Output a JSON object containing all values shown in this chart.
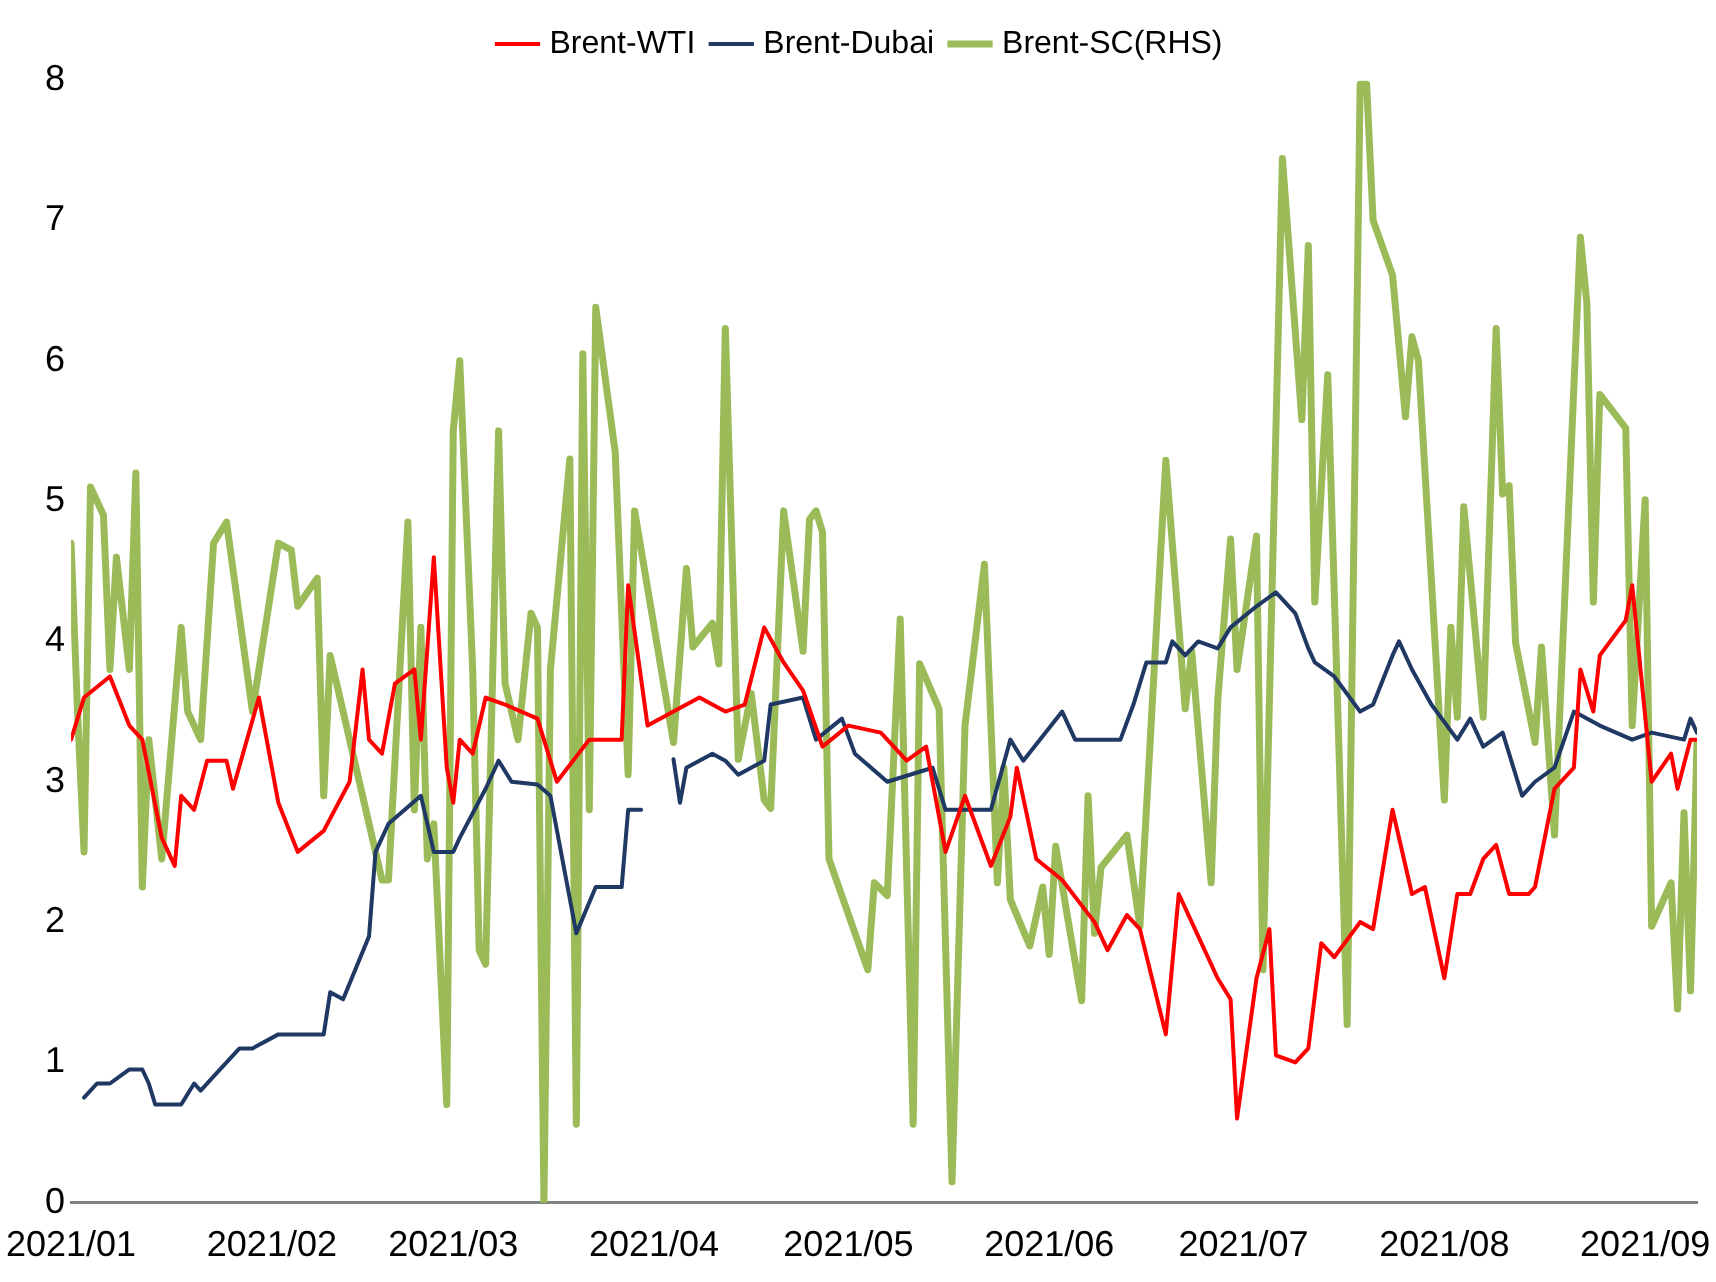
{
  "chart_data": {
    "type": "line",
    "legend": "top",
    "grid": false,
    "marker": "none",
    "line_style": "solid",
    "xlim": [
      "2021-01-01",
      "2021-09-09"
    ],
    "xticks": [
      {
        "value": "2021-01-01",
        "label": "2021/01"
      },
      {
        "value": "2021-02-01",
        "label": "2021/02"
      },
      {
        "value": "2021-03-01",
        "label": "2021/03"
      },
      {
        "value": "2021-04-01",
        "label": "2021/04"
      },
      {
        "value": "2021-05-01",
        "label": "2021/05"
      },
      {
        "value": "2021-06-01",
        "label": "2021/06"
      },
      {
        "value": "2021-07-01",
        "label": "2021/07"
      },
      {
        "value": "2021-08-01",
        "label": "2021/08"
      },
      {
        "value": "2021-09-01",
        "label": "2021/09"
      }
    ],
    "ylim": [
      0,
      8
    ],
    "yticks": [
      0,
      1,
      2,
      3,
      4,
      5,
      6,
      7,
      8
    ],
    "series": [
      {
        "name": "Brent-WTI",
        "color": "#ff0000",
        "x": [
          "2021-01-01",
          "2021-01-03",
          "2021-01-07",
          "2021-01-10",
          "2021-01-12",
          "2021-01-15",
          "2021-01-17",
          "2021-01-18",
          "2021-01-20",
          "2021-01-22",
          "2021-01-25",
          "2021-01-26",
          "2021-01-30",
          "2021-02-02",
          "2021-02-05",
          "2021-02-09",
          "2021-02-13",
          "2021-02-15",
          "2021-02-16",
          "2021-02-18",
          "2021-02-20",
          "2021-02-23",
          "2021-02-24",
          "2021-02-26",
          "2021-02-28",
          "2021-03-01",
          "2021-03-02",
          "2021-03-04",
          "2021-03-06",
          "2021-03-09",
          "2021-03-14",
          "2021-03-17",
          "2021-03-22",
          "2021-03-27",
          "2021-03-28",
          "2021-03-31",
          "2021-04-04",
          "2021-04-08",
          "2021-04-12",
          "2021-04-15",
          "2021-04-18",
          "2021-04-21",
          "2021-04-24",
          "2021-04-27",
          "2021-05-01",
          "2021-05-06",
          "2021-05-10",
          "2021-05-13",
          "2021-05-16",
          "2021-05-19",
          "2021-05-23",
          "2021-05-26",
          "2021-05-27",
          "2021-05-30",
          "2021-06-03",
          "2021-06-08",
          "2021-06-10",
          "2021-06-13",
          "2021-06-15",
          "2021-06-19",
          "2021-06-21",
          "2021-06-24",
          "2021-06-27",
          "2021-06-29",
          "2021-06-30",
          "2021-07-03",
          "2021-07-05",
          "2021-07-06",
          "2021-07-09",
          "2021-07-11",
          "2021-07-13",
          "2021-07-15",
          "2021-07-19",
          "2021-07-21",
          "2021-07-24",
          "2021-07-27",
          "2021-07-29",
          "2021-08-01",
          "2021-08-03",
          "2021-08-05",
          "2021-08-07",
          "2021-08-09",
          "2021-08-11",
          "2021-08-14",
          "2021-08-15",
          "2021-08-18",
          "2021-08-21",
          "2021-08-22",
          "2021-08-24",
          "2021-08-25",
          "2021-08-29",
          "2021-08-30",
          "2021-09-02",
          "2021-09-05",
          "2021-09-06",
          "2021-09-08",
          "2021-09-09"
        ],
        "values": [
          3.3,
          3.6,
          3.75,
          3.4,
          3.3,
          2.6,
          2.4,
          2.9,
          2.8,
          3.15,
          3.15,
          2.95,
          3.6,
          2.85,
          2.5,
          2.65,
          3.0,
          3.8,
          3.3,
          3.2,
          3.7,
          3.8,
          3.3,
          4.6,
          3.1,
          2.85,
          3.3,
          3.2,
          3.6,
          3.55,
          3.45,
          3.0,
          3.3,
          3.3,
          4.4,
          3.4,
          3.5,
          3.6,
          3.5,
          3.55,
          4.1,
          3.85,
          3.65,
          3.25,
          3.4,
          3.35,
          3.15,
          3.25,
          2.5,
          2.9,
          2.4,
          2.75,
          3.1,
          2.45,
          2.3,
          2.0,
          1.8,
          2.05,
          1.95,
          1.2,
          2.2,
          1.9,
          1.6,
          1.45,
          0.6,
          1.6,
          1.95,
          1.05,
          1.0,
          1.1,
          1.85,
          1.75,
          2.0,
          1.95,
          2.8,
          2.2,
          2.25,
          1.6,
          2.2,
          2.2,
          2.45,
          2.55,
          2.2,
          2.2,
          2.25,
          2.95,
          3.1,
          3.8,
          3.5,
          3.9,
          4.15,
          4.4,
          3.0,
          3.2,
          2.95,
          3.3,
          3.3
        ]
      },
      {
        "name": "Brent-Dubai",
        "color": "#1f3864",
        "x": [
          "2021-01-03",
          "2021-01-05",
          "2021-01-07",
          "2021-01-10",
          "2021-01-12",
          "2021-01-13",
          "2021-01-14",
          "2021-01-18",
          "2021-01-20",
          "2021-01-21",
          "2021-01-24",
          "2021-01-27",
          "2021-01-29",
          "2021-02-02",
          "2021-02-05",
          "2021-02-09",
          "2021-02-10",
          "2021-02-12",
          "2021-02-16",
          "2021-02-17",
          "2021-02-19",
          "2021-02-24",
          "2021-02-26",
          "2021-03-01",
          "2021-03-02",
          "2021-03-06",
          "2021-03-08",
          "2021-03-10",
          "2021-03-14",
          "2021-03-16",
          "2021-03-20",
          "2021-03-23",
          "2021-03-27",
          "2021-03-28",
          "2021-03-30",
          "2021-04-02",
          "2021-04-04",
          "2021-04-05",
          "2021-04-06",
          "2021-04-10",
          "2021-04-12",
          "2021-04-14",
          "2021-04-18",
          "2021-04-19",
          "2021-04-24",
          "2021-04-26",
          "2021-04-30",
          "2021-05-02",
          "2021-05-07",
          "2021-05-14",
          "2021-05-16",
          "2021-05-23",
          "2021-05-26",
          "2021-05-28",
          "2021-06-03",
          "2021-06-05",
          "2021-06-08",
          "2021-06-12",
          "2021-06-14",
          "2021-06-16",
          "2021-06-19",
          "2021-06-20",
          "2021-06-22",
          "2021-06-24",
          "2021-06-27",
          "2021-06-29",
          "2021-07-03",
          "2021-07-06",
          "2021-07-09",
          "2021-07-11",
          "2021-07-12",
          "2021-07-15",
          "2021-07-19",
          "2021-07-21",
          "2021-07-24",
          "2021-07-25",
          "2021-07-27",
          "2021-07-30",
          "2021-08-03",
          "2021-08-05",
          "2021-08-07",
          "2021-08-10",
          "2021-08-13",
          "2021-08-15",
          "2021-08-18",
          "2021-08-21",
          "2021-08-25",
          "2021-08-30",
          "2021-09-02",
          "2021-09-07",
          "2021-09-08",
          "2021-09-09"
        ],
        "values": [
          0.75,
          0.85,
          0.85,
          0.95,
          0.95,
          0.85,
          0.7,
          0.7,
          0.85,
          0.8,
          0.95,
          1.1,
          1.1,
          1.2,
          1.2,
          1.2,
          1.5,
          1.45,
          1.9,
          2.5,
          2.7,
          2.9,
          2.5,
          2.5,
          2.6,
          2.95,
          3.15,
          3.0,
          2.98,
          2.9,
          1.92,
          2.25,
          2.25,
          2.8,
          2.8,
          null,
          3.16,
          2.85,
          3.1,
          3.2,
          3.15,
          3.05,
          3.15,
          3.55,
          3.6,
          3.3,
          3.45,
          3.2,
          3.0,
          3.1,
          2.8,
          2.8,
          3.3,
          3.15,
          3.5,
          3.3,
          3.3,
          3.3,
          3.55,
          3.85,
          3.85,
          4.0,
          3.9,
          4.0,
          3.95,
          4.1,
          4.25,
          4.35,
          4.2,
          3.95,
          3.85,
          3.75,
          3.5,
          3.55,
          3.9,
          4.0,
          3.8,
          3.55,
          3.3,
          3.45,
          3.25,
          3.35,
          2.9,
          3.0,
          3.1,
          3.5,
          3.4,
          3.3,
          3.35,
          3.3,
          3.45,
          3.35
        ]
      },
      {
        "name": "Brent-SC(RHS)",
        "color": "#9bbb59",
        "x": [
          "2021-01-01",
          "2021-01-02",
          "2021-01-03",
          "2021-01-04",
          "2021-01-06",
          "2021-01-07",
          "2021-01-08",
          "2021-01-10",
          "2021-01-11",
          "2021-01-12",
          "2021-01-13",
          "2021-01-15",
          "2021-01-18",
          "2021-01-19",
          "2021-01-21",
          "2021-01-23",
          "2021-01-25",
          "2021-01-29",
          "2021-02-02",
          "2021-02-04",
          "2021-02-05",
          "2021-02-08",
          "2021-02-09",
          "2021-02-10",
          "2021-02-18",
          "2021-02-19",
          "2021-02-22",
          "2021-02-23",
          "2021-02-24",
          "2021-02-25",
          "2021-02-26",
          "2021-02-28",
          "2021-03-01",
          "2021-03-02",
          "2021-03-04",
          "2021-03-05",
          "2021-03-06",
          "2021-03-08",
          "2021-03-09",
          "2021-03-11",
          "2021-03-13",
          "2021-03-14",
          "2021-03-15",
          "2021-03-16",
          "2021-03-19",
          "2021-03-20",
          "2021-03-21",
          "2021-03-22",
          "2021-03-23",
          "2021-03-26",
          "2021-03-28",
          "2021-03-29",
          "2021-04-04",
          "2021-04-06",
          "2021-04-07",
          "2021-04-10",
          "2021-04-11",
          "2021-04-12",
          "2021-04-14",
          "2021-04-16",
          "2021-04-18",
          "2021-04-19",
          "2021-04-21",
          "2021-04-24",
          "2021-04-25",
          "2021-04-26",
          "2021-04-27",
          "2021-04-28",
          "2021-05-04",
          "2021-05-05",
          "2021-05-07",
          "2021-05-09",
          "2021-05-11",
          "2021-05-12",
          "2021-05-15",
          "2021-05-17",
          "2021-05-19",
          "2021-05-22",
          "2021-05-24",
          "2021-05-25",
          "2021-05-26",
          "2021-05-29",
          "2021-05-31",
          "2021-06-01",
          "2021-06-02",
          "2021-06-06",
          "2021-06-07",
          "2021-06-08",
          "2021-06-09",
          "2021-06-13",
          "2021-06-15",
          "2021-06-19",
          "2021-06-22",
          "2021-06-23",
          "2021-06-26",
          "2021-06-27",
          "2021-06-29",
          "2021-06-30",
          "2021-07-03",
          "2021-07-04",
          "2021-07-07",
          "2021-07-10",
          "2021-07-11",
          "2021-07-12",
          "2021-07-14",
          "2021-07-17",
          "2021-07-19",
          "2021-07-20",
          "2021-07-21",
          "2021-07-24",
          "2021-07-26",
          "2021-07-27",
          "2021-07-28",
          "2021-08-01",
          "2021-08-02",
          "2021-08-03",
          "2021-08-04",
          "2021-08-07",
          "2021-08-09",
          "2021-08-10",
          "2021-08-11",
          "2021-08-12",
          "2021-08-15",
          "2021-08-16",
          "2021-08-18",
          "2021-08-22",
          "2021-08-23",
          "2021-08-24",
          "2021-08-25",
          "2021-08-29",
          "2021-08-30",
          "2021-09-01",
          "2021-09-02",
          "2021-09-05",
          "2021-09-06",
          "2021-09-07",
          "2021-09-08",
          "2021-09-09"
        ],
        "values": [
          4.7,
          3.5,
          2.5,
          5.1,
          4.9,
          3.8,
          4.6,
          3.8,
          5.2,
          2.25,
          3.3,
          2.45,
          4.1,
          3.5,
          3.3,
          4.7,
          4.85,
          3.5,
          4.7,
          4.65,
          4.25,
          4.45,
          2.9,
          3.9,
          2.3,
          2.3,
          4.85,
          2.8,
          4.1,
          2.45,
          2.7,
          0.7,
          5.5,
          6.0,
          3.8,
          1.8,
          1.7,
          5.5,
          3.7,
          3.3,
          4.2,
          4.1,
          0.0,
          3.8,
          5.3,
          0.56,
          6.05,
          2.8,
          6.38,
          5.35,
          3.05,
          4.93,
          3.28,
          4.52,
          3.96,
          4.13,
          3.84,
          6.23,
          3.16,
          3.63,
          2.87,
          2.81,
          4.93,
          3.93,
          4.87,
          4.93,
          4.78,
          2.45,
          1.66,
          2.28,
          2.19,
          4.16,
          0.56,
          3.84,
          3.52,
          0.15,
          3.4,
          4.55,
          2.28,
          3.1,
          2.16,
          1.83,
          2.25,
          1.77,
          2.54,
          1.44,
          2.9,
          1.92,
          2.39,
          2.62,
          1.97,
          5.29,
          3.52,
          3.93,
          2.28,
          3.57,
          4.73,
          3.8,
          4.75,
          1.66,
          7.44,
          5.58,
          6.82,
          4.28,
          5.9,
          1.27,
          7.97,
          7.97,
          7.0,
          6.61,
          5.6,
          6.17,
          6.0,
          2.87,
          4.1,
          3.46,
          4.96,
          3.46,
          6.23,
          5.05,
          5.11,
          3.99,
          3.28,
          3.96,
          2.62,
          6.88,
          6.41,
          4.28,
          5.76,
          5.52,
          3.4,
          5.01,
          1.97,
          2.28,
          1.38,
          2.78,
          1.51,
          3.28
        ]
      }
    ]
  }
}
